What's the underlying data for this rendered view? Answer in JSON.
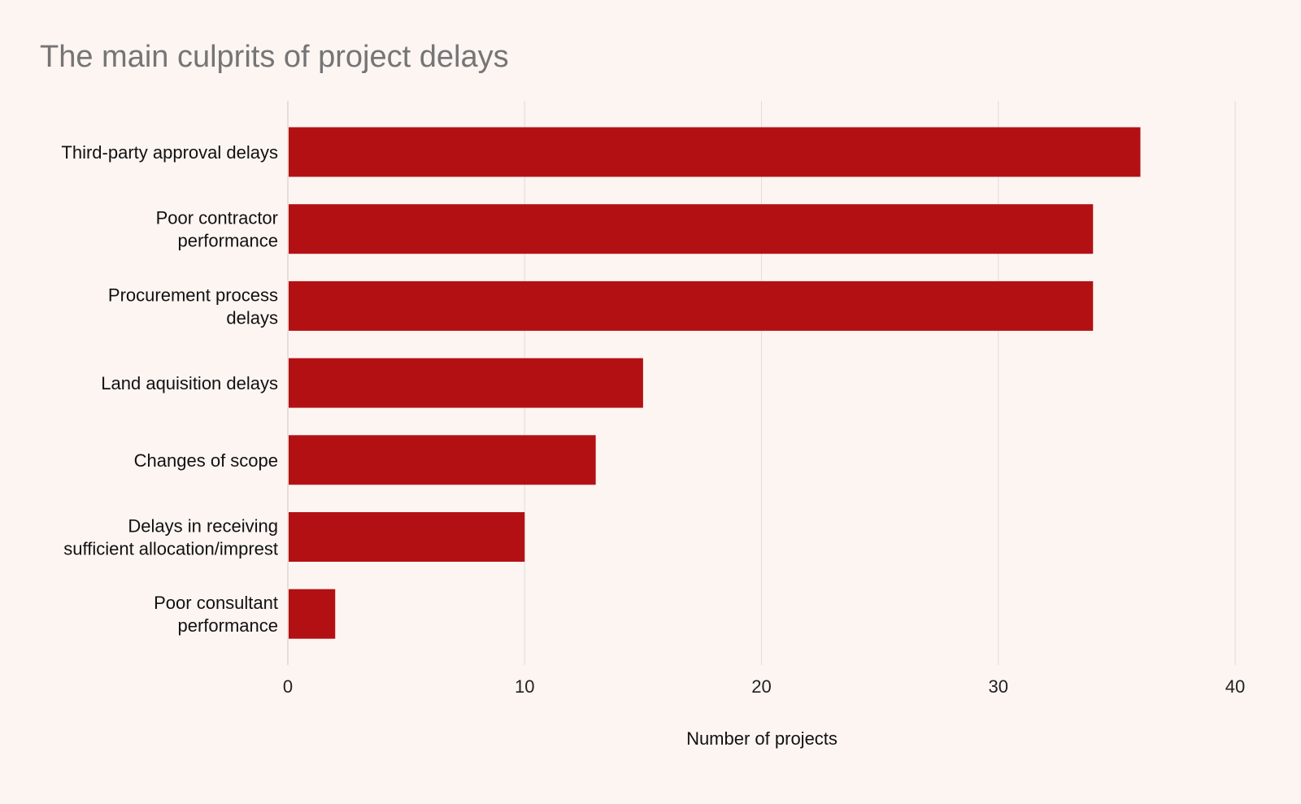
{
  "chart_data": {
    "type": "bar",
    "orientation": "horizontal",
    "title": "The main culprits of project delays",
    "xlabel": "Number of projects",
    "ylabel": "",
    "xlim": [
      0,
      40
    ],
    "xticks": [
      0,
      10,
      20,
      30,
      40
    ],
    "grid": true,
    "bar_color": "#b31014",
    "grid_color": "#e4dcd8",
    "categories": [
      [
        "Third-party approval delays"
      ],
      [
        "Poor contractor",
        "performance"
      ],
      [
        "Procurement process",
        "delays"
      ],
      [
        "Land aquisition delays"
      ],
      [
        "Changes of scope"
      ],
      [
        "Delays in receiving",
        "sufficient allocation/imprest"
      ],
      [
        "Poor consultant",
        "performance"
      ]
    ],
    "values": [
      36,
      34,
      34,
      15,
      13,
      10,
      2
    ]
  }
}
